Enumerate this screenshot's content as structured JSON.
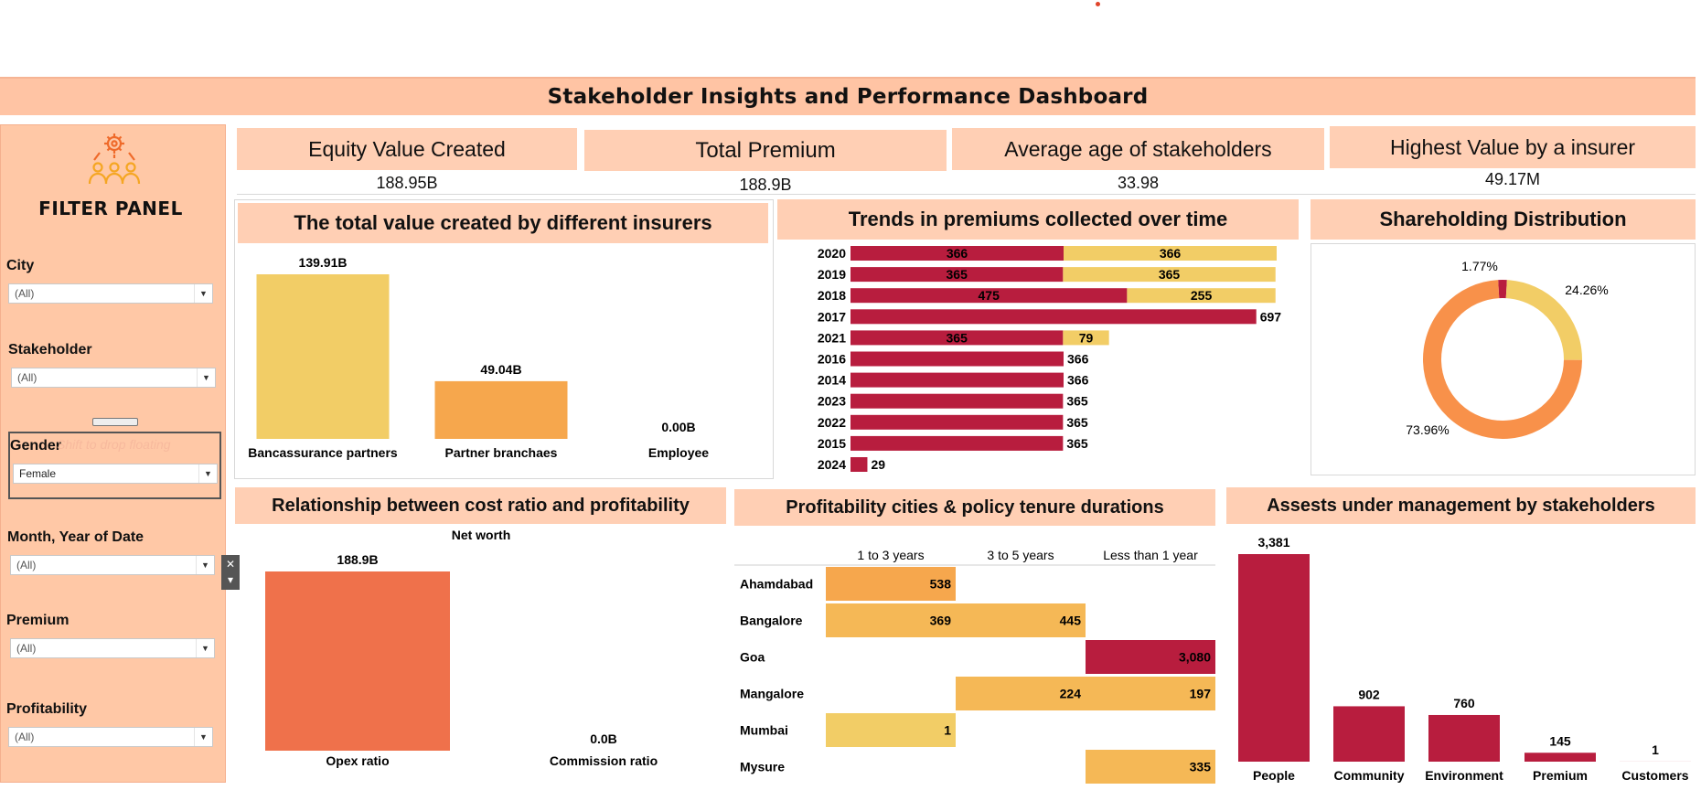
{
  "dashboard": {
    "title": "Stakeholder Insights and Performance Dashboard"
  },
  "filter_panel": {
    "title": "FILTER PANEL",
    "logo_icon": "team-gear-icon",
    "drop_hint": "Shift to drop floating",
    "close_glyph": "✕",
    "menu_glyph": "▾",
    "filters": [
      {
        "label": "City",
        "value": "(All)"
      },
      {
        "label": "Stakeholder",
        "value": "(All)"
      },
      {
        "label": "Gender",
        "value": "Female"
      },
      {
        "label": "Month, Year of Date",
        "value": "(All)"
      },
      {
        "label": "Premium",
        "value": "(All)"
      },
      {
        "label": "Profitability",
        "value": "(All)"
      }
    ]
  },
  "kpis": [
    {
      "label": "Equity Value Created",
      "value": "188.95B"
    },
    {
      "label": "Total Premium",
      "value": "188.9B"
    },
    {
      "label": "Average age of stakeholders",
      "value": "33.98"
    },
    {
      "label": "Highest Value by a insurer",
      "value": "49.17M"
    }
  ],
  "colors": {
    "crimson": "#b81d3e",
    "yellow": "#f2cd66",
    "orange": "#f6a74d",
    "dark_orange": "#f8914a",
    "coral": "#ef714b",
    "peach": "#ffcfb4",
    "banner": "#ffc4a4"
  },
  "chart_data": [
    {
      "id": "insurers",
      "title": "The total value created by different insurers",
      "type": "bar",
      "categories": [
        "Bancassurance partners",
        "Partner branchaes",
        "Employee"
      ],
      "values": [
        139.91,
        49.04,
        0.0
      ],
      "labels": [
        "139.91B",
        "49.04B",
        "0.00B"
      ]
    },
    {
      "id": "premium-trends",
      "title": "Trends in premiums collected over time",
      "type": "bar",
      "orientation": "horizontal",
      "categories": [
        "2020",
        "2019",
        "2018",
        "2017",
        "2021",
        "2016",
        "2014",
        "2023",
        "2022",
        "2015",
        "2024"
      ],
      "series": [
        {
          "values": [
            366,
            365,
            475,
            697,
            365,
            366,
            366,
            365,
            365,
            365,
            29
          ]
        },
        {
          "values": [
            366,
            365,
            255,
            null,
            79,
            null,
            null,
            null,
            null,
            null,
            null
          ]
        }
      ]
    },
    {
      "id": "shareholding",
      "title": "Shareholding Distribution",
      "type": "pie",
      "variant": "donut",
      "values": [
        1.77,
        24.26,
        73.96
      ],
      "labels": [
        "1.77%",
        "24.26%",
        "73.96%"
      ]
    },
    {
      "id": "cost-ratio",
      "title": "Relationship between cost ratio and profitability",
      "type": "bar",
      "ylabel": "Net worth",
      "categories": [
        "Opex ratio",
        "Commission ratio"
      ],
      "values": [
        188.9,
        0.0
      ],
      "labels": [
        "188.9B",
        "0.0B"
      ]
    },
    {
      "id": "cities-tenure",
      "title": "Profitability cities & policy tenure durations",
      "type": "heatmap",
      "columns": [
        "1 to 3 years",
        "3 to 5 years",
        "Less than 1 year"
      ],
      "rows": [
        "Ahamdabad",
        "Bangalore",
        "Goa",
        "Mangalore",
        "Mumbai",
        "Mysure"
      ],
      "values": [
        [
          538,
          null,
          null
        ],
        [
          369,
          445,
          null
        ],
        [
          null,
          null,
          3080
        ],
        [
          null,
          224,
          197
        ],
        [
          1,
          null,
          null
        ],
        [
          null,
          null,
          335
        ]
      ],
      "labels": [
        [
          "538",
          "",
          ""
        ],
        [
          "369",
          "445",
          ""
        ],
        [
          "",
          "",
          "3,080"
        ],
        [
          "",
          "224",
          "197"
        ],
        [
          "1",
          "",
          ""
        ],
        [
          "",
          "",
          "335"
        ]
      ]
    },
    {
      "id": "aum",
      "title": "Assests under management by stakeholders",
      "type": "bar",
      "categories": [
        "People",
        "Community",
        "Environment",
        "Premium",
        "Customers"
      ],
      "values": [
        3381,
        902,
        760,
        145,
        1
      ],
      "labels": [
        "3,381",
        "902",
        "760",
        "145",
        "1"
      ]
    }
  ]
}
